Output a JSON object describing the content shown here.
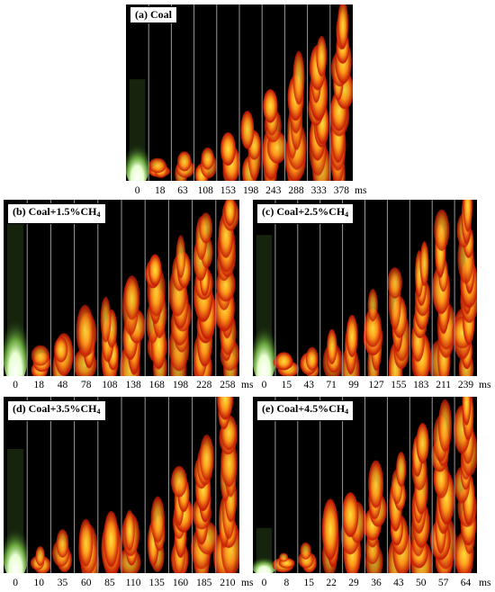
{
  "panels": [
    {
      "id": "a",
      "label": "(a) Coal",
      "label_parts": [
        "(a) Coal"
      ],
      "times": [
        "0",
        "18",
        "63",
        "108",
        "153",
        "198",
        "243",
        "288",
        "333",
        "378"
      ],
      "unit": "ms",
      "flame_heights": [
        0.18,
        0.08,
        0.11,
        0.12,
        0.16,
        0.27,
        0.45,
        0.58,
        0.74,
        0.92
      ],
      "ignition_glow": true
    },
    {
      "id": "b",
      "label": "(b) Coal+1.5%CH4",
      "label_parts": [
        "(b) Coal+1.5%CH",
        "4"
      ],
      "times": [
        "0",
        "18",
        "48",
        "78",
        "108",
        "138",
        "168",
        "198",
        "228",
        "258"
      ],
      "unit": "ms",
      "flame_heights": [
        0.28,
        0.1,
        0.17,
        0.28,
        0.36,
        0.46,
        0.62,
        0.7,
        0.86,
        0.97
      ],
      "ignition_glow": true
    },
    {
      "id": "c",
      "label": "(c) Coal+2.5%CH4",
      "label_parts": [
        "(c) Coal+2.5%CH",
        "4"
      ],
      "times": [
        "0",
        "15",
        "43",
        "71",
        "99",
        "127",
        "155",
        "183",
        "211",
        "239"
      ],
      "unit": "ms",
      "flame_heights": [
        0.25,
        0.08,
        0.1,
        0.16,
        0.22,
        0.38,
        0.5,
        0.63,
        0.8,
        0.98
      ],
      "ignition_glow": true
    },
    {
      "id": "d",
      "label": "(d) Coal+3.5%CH4",
      "label_parts": [
        "(d) Coal+3.5%CH",
        "4"
      ],
      "times": [
        "0",
        "10",
        "35",
        "60",
        "85",
        "110",
        "135",
        "160",
        "185",
        "210"
      ],
      "unit": "ms",
      "flame_heights": [
        0.22,
        0.08,
        0.14,
        0.2,
        0.23,
        0.25,
        0.3,
        0.55,
        0.68,
        0.96
      ],
      "ignition_glow": true
    },
    {
      "id": "e",
      "label": "(e) Coal+4.5%CH4",
      "label_parts": [
        "(e) Coal+4.5%CH",
        "4"
      ],
      "times": [
        "0",
        "8",
        "15",
        "22",
        "29",
        "36",
        "43",
        "50",
        "57",
        "64"
      ],
      "unit": "ms",
      "flame_heights": [
        0.08,
        0.06,
        0.1,
        0.24,
        0.36,
        0.48,
        0.58,
        0.72,
        0.86,
        0.97
      ],
      "ignition_glow": true
    }
  ],
  "colors": {
    "background": "#000000",
    "flame_core": "#ffe640",
    "flame_mid": "#ff9a1a",
    "flame_outer": "#c41a05",
    "glow_green": "#7ec84a",
    "glow_white": "#ffffff",
    "separator": "#9a9a9a"
  }
}
